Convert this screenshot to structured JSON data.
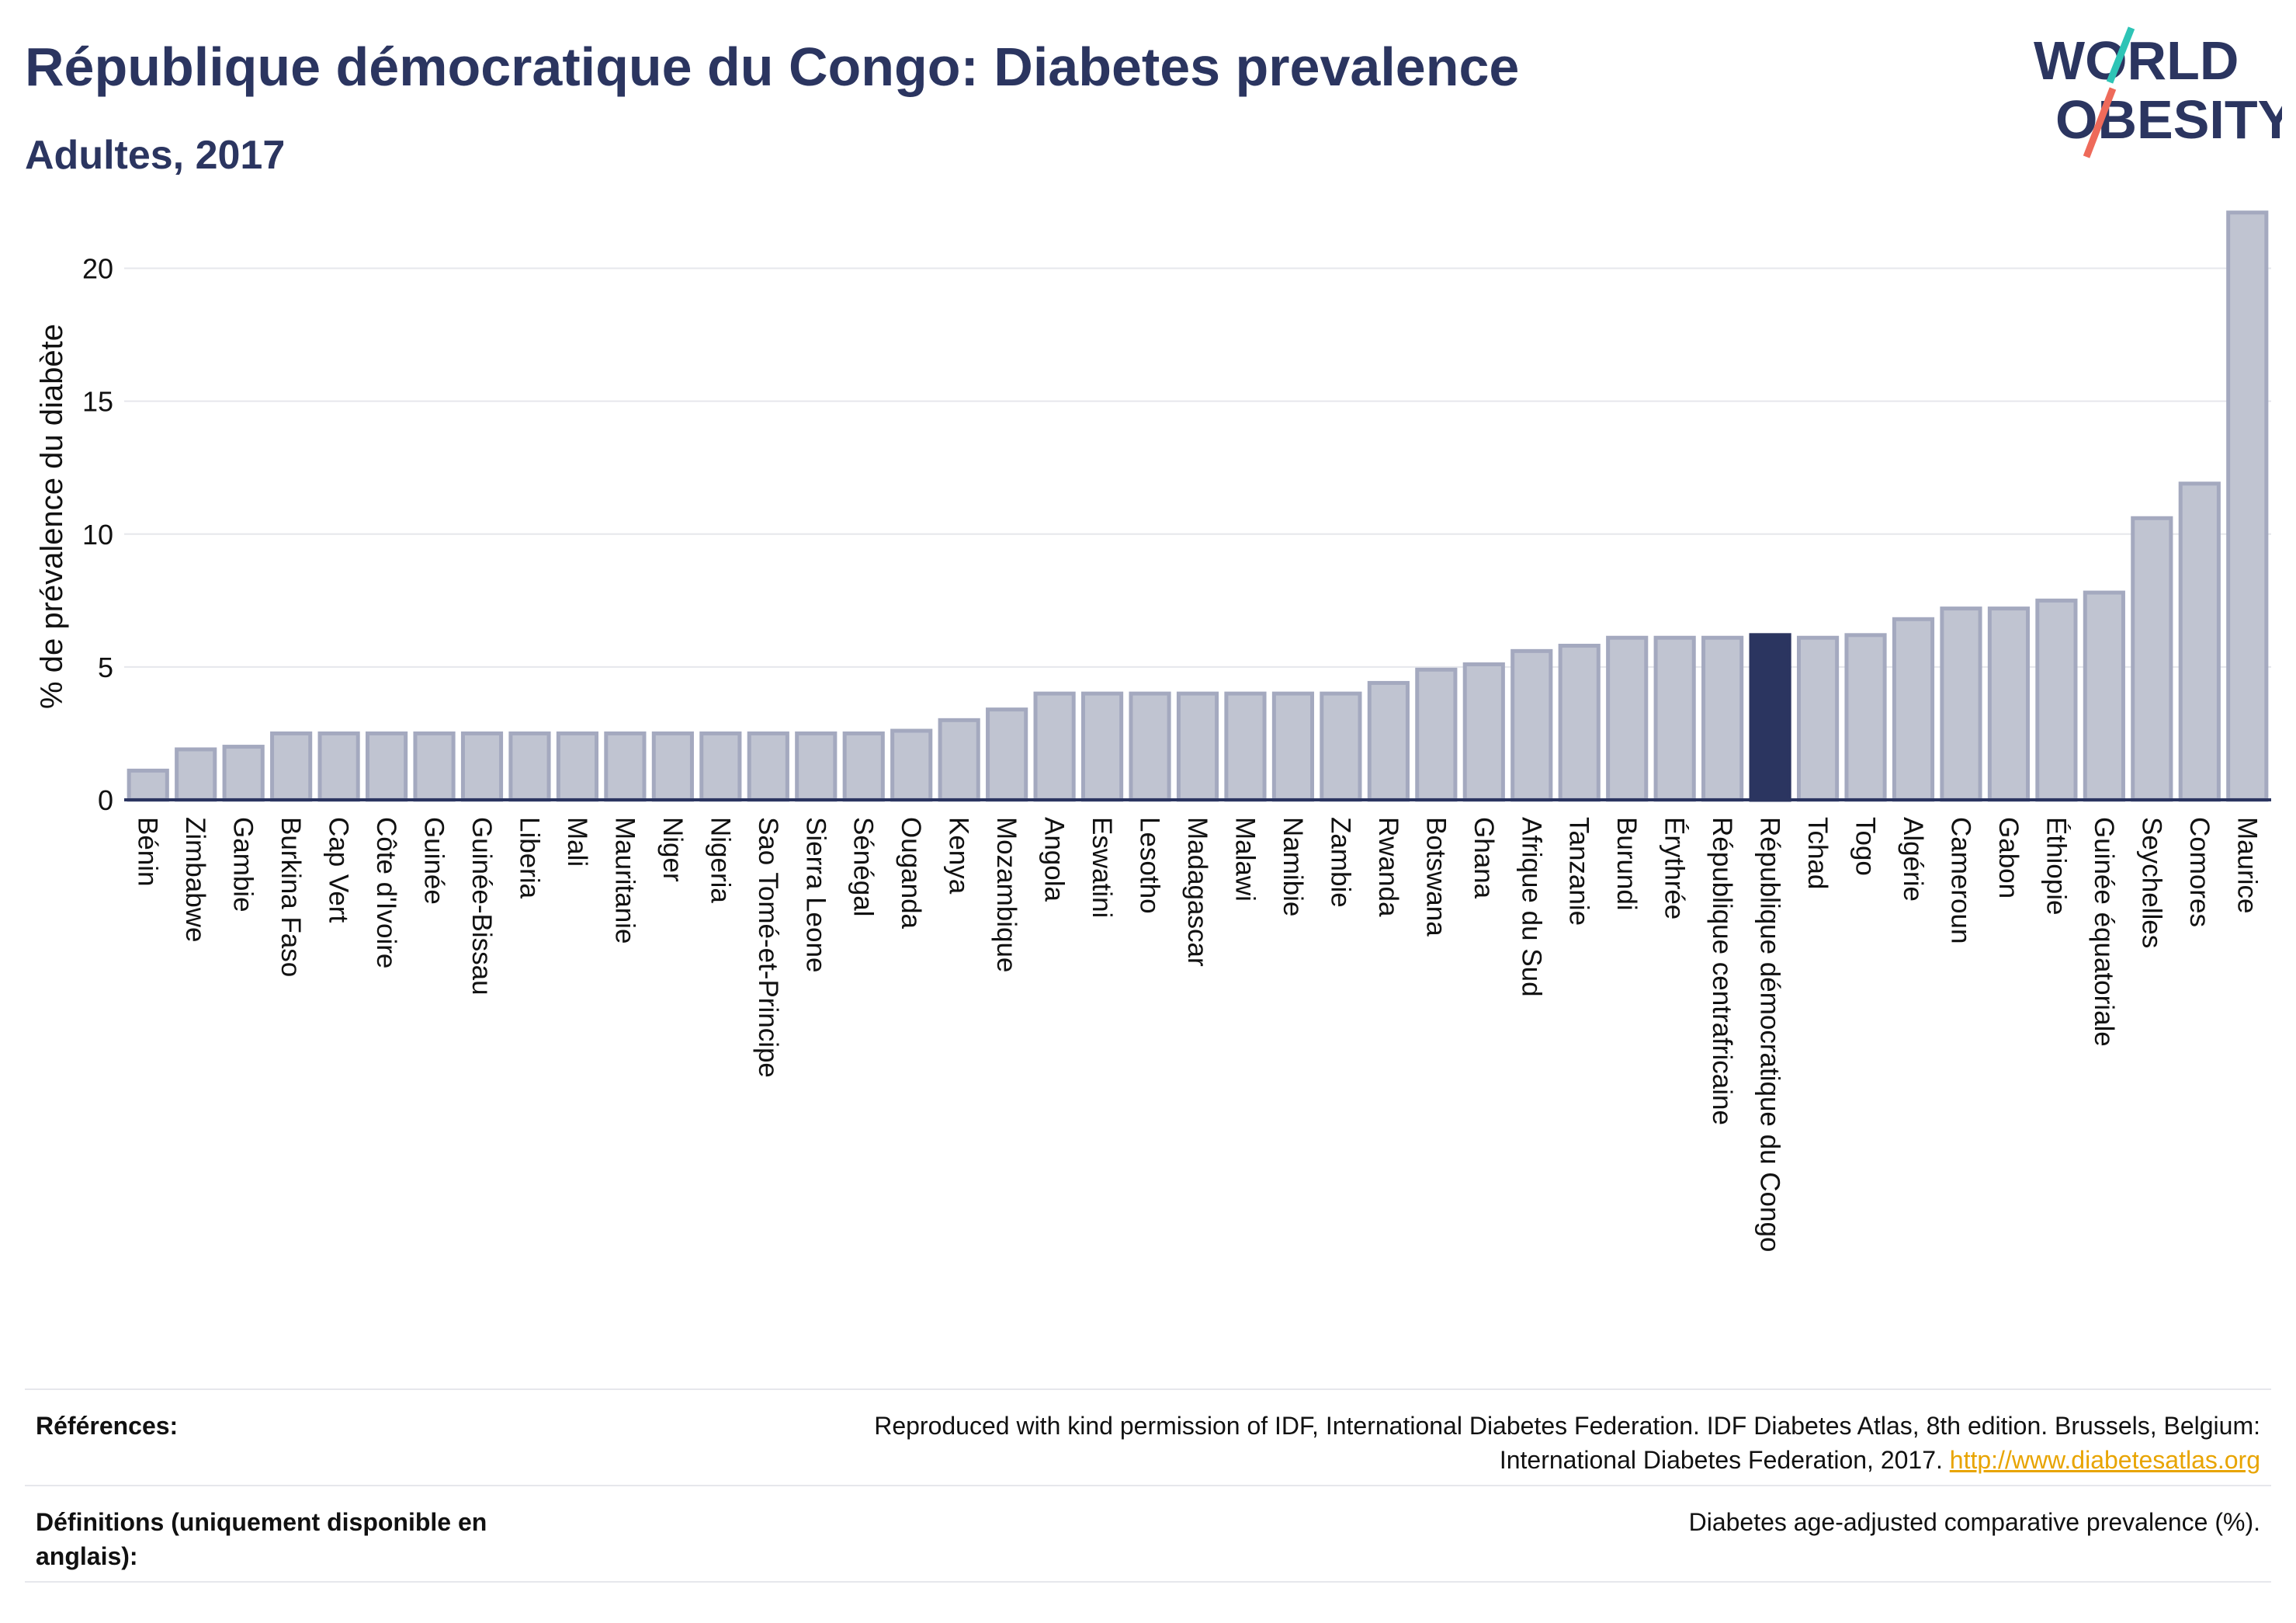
{
  "header": {
    "title": "République démocratique du Congo: Diabetes prevalence",
    "subtitle": "Adultes, 2017"
  },
  "logo": {
    "line1": "WORLD",
    "line2": "OBESITY",
    "icon": "world-obesity-logo"
  },
  "chart_data": {
    "type": "bar",
    "title": "République démocratique du Congo: Diabetes prevalence",
    "subtitle": "Adultes, 2017",
    "xlabel": "",
    "ylabel": "% de prévalence du diabète",
    "ylim": [
      0,
      22.5
    ],
    "yticks": [
      0,
      5,
      10,
      15,
      20
    ],
    "grid": true,
    "legend": "none",
    "highlight": "République démocratique du Congo",
    "colors": {
      "bar": "#c0c4d1",
      "bar_border": "#a4a9bf",
      "highlight": "#2b3560",
      "grid": "#e6e7ec",
      "axis": "#2b3560"
    },
    "categories": [
      "Bénin",
      "Zimbabwe",
      "Gambie",
      "Burkina Faso",
      "Cap Vert",
      "Côte d'Ivoire",
      "Guinée",
      "Guinée-Bissau",
      "Liberia",
      "Mali",
      "Mauritanie",
      "Niger",
      "Nigeria",
      "Sao Tomé-et-Principe",
      "Sierra Leone",
      "Sénégal",
      "Ouganda",
      "Kenya",
      "Mozambique",
      "Angola",
      "Eswatini",
      "Lesotho",
      "Madagascar",
      "Malawi",
      "Namibie",
      "Zambie",
      "Rwanda",
      "Botswana",
      "Ghana",
      "Afrique du Sud",
      "Tanzanie",
      "Burundi",
      "Érythrée",
      "République centrafricaine",
      "République démocratique du Congo",
      "Tchad",
      "Togo",
      "Algérie",
      "Cameroun",
      "Gabon",
      "Éthiopie",
      "Guinée équatoriale",
      "Seychelles",
      "Comores",
      "Maurice"
    ],
    "values": [
      1.1,
      1.9,
      2.0,
      2.5,
      2.5,
      2.5,
      2.5,
      2.5,
      2.5,
      2.5,
      2.5,
      2.5,
      2.5,
      2.5,
      2.5,
      2.5,
      2.6,
      3.0,
      3.4,
      4.0,
      4.0,
      4.0,
      4.0,
      4.0,
      4.0,
      4.0,
      4.4,
      4.9,
      5.1,
      5.6,
      5.8,
      6.1,
      6.1,
      6.1,
      6.2,
      6.1,
      6.2,
      6.8,
      7.2,
      7.2,
      7.5,
      7.8,
      10.6,
      11.9,
      22.1
    ]
  },
  "footer": {
    "references_label": "Références:",
    "references_text": "Reproduced with kind permission of IDF, International Diabetes Federation. IDF Diabetes Atlas, 8th edition. Brussels, Belgium:",
    "references_text2": "International Diabetes Federation, 2017.",
    "references_link": "http://www.diabetesatlas.org",
    "definitions_label_1": "Définitions (uniquement disponible en",
    "definitions_label_2": "anglais):",
    "definitions_text": "Diabetes age-adjusted comparative prevalence (%)."
  }
}
